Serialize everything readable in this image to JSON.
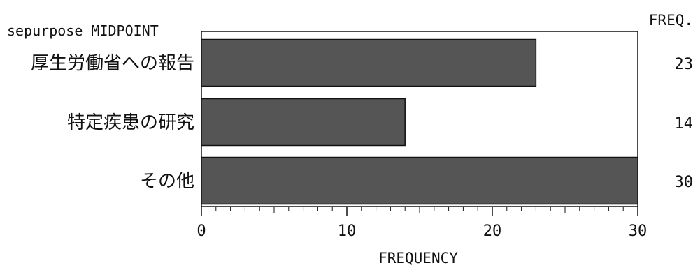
{
  "chart_data": {
    "type": "bar",
    "orientation": "horizontal",
    "title": "",
    "category_axis_label": "sepurpose MIDPOINT",
    "freq_column_label": "FREQ.",
    "xlabel": "FREQUENCY",
    "categories": [
      "厚生労働省への報告",
      "特定疾患の研究",
      "その他"
    ],
    "values": [
      23,
      14,
      30
    ],
    "xlim": [
      0,
      30
    ],
    "major_ticks": [
      0,
      10,
      20,
      30
    ],
    "tick_labels": [
      "0",
      "10",
      "20",
      "30"
    ],
    "grid": false,
    "bar_color": "#555555"
  }
}
